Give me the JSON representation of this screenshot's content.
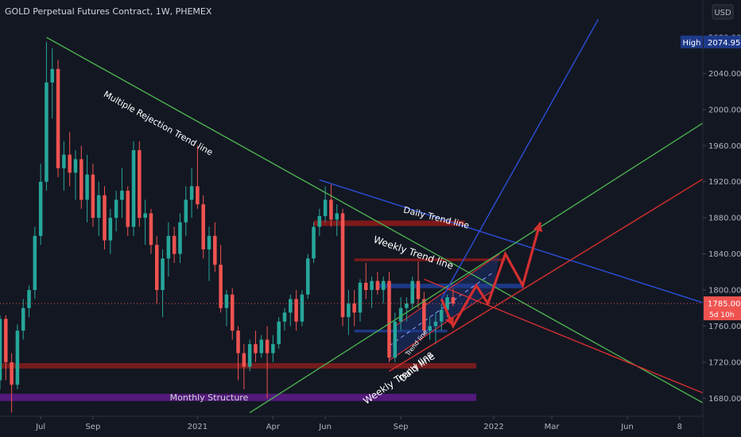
{
  "header": {
    "title": "GOLD Perpetual Futures Contract, 1W, PHEMEX",
    "currency_button": "USD"
  },
  "chart_data": {
    "type": "candlestick",
    "title": "GOLD Perpetual Futures Contract, 1W, PHEMEX",
    "y_axis": {
      "ticks": [
        1680,
        1720,
        1760,
        1800,
        1840,
        1880,
        1920,
        1960,
        2000,
        2040,
        2080
      ],
      "tick_labels": [
        "1680.00",
        "1720.00",
        "1760.00",
        "1800.00",
        "1840.00",
        "1880.00",
        "1920.00",
        "1960.00",
        "2000.00",
        "2040.00",
        "2080.00"
      ],
      "range": [
        1660,
        2095
      ]
    },
    "x_axis": {
      "tick_labels": [
        "Jul",
        "Sep",
        "2021",
        "Apr",
        "Jun",
        "Sep",
        "2022",
        "Mar",
        "Jun",
        "8"
      ],
      "tick_positions": [
        2,
        11,
        29,
        42,
        51,
        64,
        80,
        90,
        103,
        112
      ],
      "range": [
        -5,
        116
      ]
    },
    "badges": {
      "high_label": "High",
      "high_value": "2074.95",
      "high_price": 2074.95,
      "last_price": 1785.0,
      "last_label": "1785.00",
      "countdown": "5d 10h"
    },
    "up_color": "#26a69a",
    "down_color": "#ef5350",
    "candles": [
      {
        "i": -5,
        "o": 1700,
        "h": 1772,
        "l": 1690,
        "c": 1768
      },
      {
        "i": -4,
        "o": 1768,
        "h": 1772,
        "l": 1700,
        "c": 1720
      },
      {
        "i": -3,
        "o": 1720,
        "h": 1730,
        "l": 1664,
        "c": 1695
      },
      {
        "i": -2,
        "o": 1695,
        "h": 1762,
        "l": 1690,
        "c": 1755
      },
      {
        "i": -1,
        "o": 1755,
        "h": 1790,
        "l": 1745,
        "c": 1780
      },
      {
        "i": 0,
        "o": 1780,
        "h": 1805,
        "l": 1770,
        "c": 1800
      },
      {
        "i": 1,
        "o": 1800,
        "h": 1870,
        "l": 1790,
        "c": 1860
      },
      {
        "i": 2,
        "o": 1860,
        "h": 1940,
        "l": 1850,
        "c": 1920
      },
      {
        "i": 3,
        "o": 1920,
        "h": 2075,
        "l": 1910,
        "c": 2030
      },
      {
        "i": 4,
        "o": 2030,
        "h": 2068,
        "l": 1990,
        "c": 2045
      },
      {
        "i": 5,
        "o": 2045,
        "h": 2055,
        "l": 1925,
        "c": 1935
      },
      {
        "i": 6,
        "o": 1935,
        "h": 1965,
        "l": 1910,
        "c": 1950
      },
      {
        "i": 7,
        "o": 1950,
        "h": 1975,
        "l": 1915,
        "c": 1930
      },
      {
        "i": 8,
        "o": 1930,
        "h": 1955,
        "l": 1900,
        "c": 1945
      },
      {
        "i": 9,
        "o": 1945,
        "h": 1960,
        "l": 1890,
        "c": 1900
      },
      {
        "i": 10,
        "o": 1900,
        "h": 1950,
        "l": 1875,
        "c": 1928
      },
      {
        "i": 11,
        "o": 1928,
        "h": 1940,
        "l": 1870,
        "c": 1880
      },
      {
        "i": 12,
        "o": 1880,
        "h": 1920,
        "l": 1860,
        "c": 1905
      },
      {
        "i": 13,
        "o": 1905,
        "h": 1915,
        "l": 1845,
        "c": 1855
      },
      {
        "i": 14,
        "o": 1855,
        "h": 1890,
        "l": 1840,
        "c": 1880
      },
      {
        "i": 15,
        "o": 1880,
        "h": 1910,
        "l": 1865,
        "c": 1900
      },
      {
        "i": 16,
        "o": 1900,
        "h": 1935,
        "l": 1880,
        "c": 1910
      },
      {
        "i": 17,
        "o": 1910,
        "h": 1915,
        "l": 1860,
        "c": 1870
      },
      {
        "i": 18,
        "o": 1870,
        "h": 1965,
        "l": 1860,
        "c": 1955
      },
      {
        "i": 19,
        "o": 1955,
        "h": 1965,
        "l": 1870,
        "c": 1880
      },
      {
        "i": 20,
        "o": 1880,
        "h": 1900,
        "l": 1850,
        "c": 1885
      },
      {
        "i": 21,
        "o": 1885,
        "h": 1890,
        "l": 1840,
        "c": 1850
      },
      {
        "i": 22,
        "o": 1850,
        "h": 1860,
        "l": 1785,
        "c": 1800
      },
      {
        "i": 23,
        "o": 1800,
        "h": 1845,
        "l": 1770,
        "c": 1835
      },
      {
        "i": 24,
        "o": 1835,
        "h": 1875,
        "l": 1815,
        "c": 1860
      },
      {
        "i": 25,
        "o": 1860,
        "h": 1870,
        "l": 1830,
        "c": 1840
      },
      {
        "i": 26,
        "o": 1840,
        "h": 1885,
        "l": 1830,
        "c": 1875
      },
      {
        "i": 27,
        "o": 1875,
        "h": 1915,
        "l": 1860,
        "c": 1900
      },
      {
        "i": 28,
        "o": 1900,
        "h": 1935,
        "l": 1880,
        "c": 1915
      },
      {
        "i": 29,
        "o": 1915,
        "h": 1960,
        "l": 1890,
        "c": 1895
      },
      {
        "i": 30,
        "o": 1895,
        "h": 1905,
        "l": 1835,
        "c": 1845
      },
      {
        "i": 31,
        "o": 1845,
        "h": 1870,
        "l": 1810,
        "c": 1860
      },
      {
        "i": 32,
        "o": 1860,
        "h": 1875,
        "l": 1820,
        "c": 1828
      },
      {
        "i": 33,
        "o": 1828,
        "h": 1850,
        "l": 1775,
        "c": 1780
      },
      {
        "i": 34,
        "o": 1780,
        "h": 1800,
        "l": 1760,
        "c": 1795
      },
      {
        "i": 35,
        "o": 1795,
        "h": 1802,
        "l": 1745,
        "c": 1755
      },
      {
        "i": 36,
        "o": 1755,
        "h": 1760,
        "l": 1700,
        "c": 1730
      },
      {
        "i": 37,
        "o": 1730,
        "h": 1740,
        "l": 1690,
        "c": 1715
      },
      {
        "i": 38,
        "o": 1715,
        "h": 1745,
        "l": 1710,
        "c": 1740
      },
      {
        "i": 39,
        "o": 1740,
        "h": 1755,
        "l": 1720,
        "c": 1730
      },
      {
        "i": 40,
        "o": 1730,
        "h": 1750,
        "l": 1725,
        "c": 1745
      },
      {
        "i": 41,
        "o": 1745,
        "h": 1760,
        "l": 1680,
        "c": 1730
      },
      {
        "i": 42,
        "o": 1730,
        "h": 1750,
        "l": 1720,
        "c": 1740
      },
      {
        "i": 43,
        "o": 1740,
        "h": 1770,
        "l": 1735,
        "c": 1765
      },
      {
        "i": 44,
        "o": 1765,
        "h": 1780,
        "l": 1755,
        "c": 1775
      },
      {
        "i": 45,
        "o": 1775,
        "h": 1795,
        "l": 1760,
        "c": 1790
      },
      {
        "i": 46,
        "o": 1790,
        "h": 1800,
        "l": 1755,
        "c": 1765
      },
      {
        "i": 47,
        "o": 1765,
        "h": 1800,
        "l": 1760,
        "c": 1795
      },
      {
        "i": 48,
        "o": 1795,
        "h": 1840,
        "l": 1790,
        "c": 1835
      },
      {
        "i": 49,
        "o": 1835,
        "h": 1875,
        "l": 1830,
        "c": 1870
      },
      {
        "i": 50,
        "o": 1870,
        "h": 1890,
        "l": 1860,
        "c": 1882
      },
      {
        "i": 51,
        "o": 1882,
        "h": 1915,
        "l": 1875,
        "c": 1900
      },
      {
        "i": 52,
        "o": 1900,
        "h": 1918,
        "l": 1870,
        "c": 1878
      },
      {
        "i": 53,
        "o": 1878,
        "h": 1895,
        "l": 1860,
        "c": 1885
      },
      {
        "i": 54,
        "o": 1885,
        "h": 1890,
        "l": 1760,
        "c": 1770
      },
      {
        "i": 55,
        "o": 1770,
        "h": 1800,
        "l": 1750,
        "c": 1785
      },
      {
        "i": 56,
        "o": 1785,
        "h": 1800,
        "l": 1760,
        "c": 1775
      },
      {
        "i": 57,
        "o": 1775,
        "h": 1812,
        "l": 1765,
        "c": 1808
      },
      {
        "i": 58,
        "o": 1808,
        "h": 1830,
        "l": 1790,
        "c": 1800
      },
      {
        "i": 59,
        "o": 1800,
        "h": 1815,
        "l": 1780,
        "c": 1810
      },
      {
        "i": 60,
        "o": 1810,
        "h": 1820,
        "l": 1795,
        "c": 1800
      },
      {
        "i": 61,
        "o": 1800,
        "h": 1815,
        "l": 1785,
        "c": 1810
      },
      {
        "i": 62,
        "o": 1810,
        "h": 1820,
        "l": 1720,
        "c": 1725
      },
      {
        "i": 63,
        "o": 1725,
        "h": 1775,
        "l": 1720,
        "c": 1765
      },
      {
        "i": 64,
        "o": 1765,
        "h": 1792,
        "l": 1755,
        "c": 1780
      },
      {
        "i": 65,
        "o": 1780,
        "h": 1792,
        "l": 1765,
        "c": 1785
      },
      {
        "i": 66,
        "o": 1785,
        "h": 1815,
        "l": 1780,
        "c": 1810
      },
      {
        "i": 67,
        "o": 1810,
        "h": 1832,
        "l": 1780,
        "c": 1790
      },
      {
        "i": 68,
        "o": 1790,
        "h": 1798,
        "l": 1750,
        "c": 1755
      },
      {
        "i": 69,
        "o": 1755,
        "h": 1770,
        "l": 1745,
        "c": 1760
      },
      {
        "i": 70,
        "o": 1760,
        "h": 1775,
        "l": 1740,
        "c": 1765
      },
      {
        "i": 71,
        "o": 1765,
        "h": 1785,
        "l": 1755,
        "c": 1778
      },
      {
        "i": 72,
        "o": 1778,
        "h": 1795,
        "l": 1770,
        "c": 1792
      },
      {
        "i": 73,
        "o": 1792,
        "h": 1802,
        "l": 1782,
        "c": 1785
      }
    ],
    "zones": [
      {
        "name": "monthly-structure-zone",
        "color": "#6a1b9a",
        "opacity": 0.75,
        "x0": -5,
        "x1": 77,
        "y0": 1677,
        "y1": 1685,
        "label": "Monthly Structure"
      },
      {
        "name": "support-zone-1720",
        "color": "#7f1d1d",
        "opacity": 0.9,
        "x0": -5,
        "x1": 77,
        "y0": 1713,
        "y1": 1719,
        "label": ""
      },
      {
        "name": "resistance-zone-1875",
        "color": "#8b1a1a",
        "opacity": 0.9,
        "x0": 49,
        "x1": 75,
        "y0": 1871,
        "y1": 1877,
        "label": ""
      },
      {
        "name": "resistance-zone-1835",
        "color": "#8b1a1a",
        "opacity": 0.9,
        "x0": 56,
        "x1": 82,
        "y0": 1832,
        "y1": 1835,
        "label": ""
      },
      {
        "name": "blue-zone-1805",
        "color": "#1e3a8a",
        "opacity": 0.95,
        "x0": 60,
        "x1": 85,
        "y0": 1802,
        "y1": 1807,
        "label": ""
      },
      {
        "name": "blue-zone-1755",
        "color": "#1e3a8a",
        "opacity": 0.95,
        "x0": 56,
        "x1": 72,
        "y0": 1753,
        "y1": 1756,
        "label": ""
      }
    ],
    "trend_lines": [
      {
        "name": "multiple-rejection-trend-line",
        "color": "#4caf50",
        "width": 1.4,
        "x0": 3,
        "y0": 2080,
        "x1": 116,
        "y1": 1675
      },
      {
        "name": "daily-trend-line",
        "color": "#2b4fd8",
        "width": 1.4,
        "x0": 50,
        "y0": 1922,
        "x1": 116,
        "y1": 1786
      },
      {
        "name": "weekly-trend-line",
        "color": "#d32f2f",
        "width": 1.4,
        "x0": 68,
        "y0": 1812,
        "x1": 116,
        "y1": 1686
      },
      {
        "name": "green-rising-line",
        "color": "#4caf50",
        "width": 1.4,
        "x0": 38,
        "y0": 1664,
        "x1": 116,
        "y1": 1985
      },
      {
        "name": "red-rising-line",
        "color": "#d32f2f",
        "width": 1.4,
        "x0": 62,
        "y0": 1710,
        "x1": 116,
        "y1": 1923
      },
      {
        "name": "blue-rising-line",
        "color": "#2b4fd8",
        "width": 1.4,
        "x0": 71,
        "y0": 1790,
        "x1": 98,
        "y1": 2100
      }
    ],
    "channel": {
      "name": "weekly-daily-channel",
      "fill": "#1e3a8a",
      "fill_opacity": 0.4,
      "edge_color": "#d32f2f",
      "points": [
        [
          62,
          1722
        ],
        [
          80,
          1800
        ],
        [
          81,
          1840
        ],
        [
          63,
          1760
        ]
      ],
      "mid_dash": [
        [
          62,
          1738
        ],
        [
          80,
          1820
        ]
      ]
    },
    "projection": {
      "name": "projected-path-arrow",
      "color": "#d32f2f",
      "points": [
        [
          71,
          1790
        ],
        [
          73,
          1760
        ],
        [
          77,
          1805
        ],
        [
          79,
          1785
        ],
        [
          82,
          1840
        ],
        [
          85,
          1805
        ],
        [
          88,
          1875
        ]
      ]
    },
    "annotations": [
      {
        "name": "annotation-multiple-rejection",
        "text": "Multiple Rejection Trend line",
        "x": 22,
        "y": 1982,
        "angle": 29,
        "size": 11
      },
      {
        "name": "annotation-daily-trend",
        "text": "Daily Trend line",
        "x": 70,
        "y": 1877,
        "angle": 14,
        "size": 11
      },
      {
        "name": "annotation-weekly-trend",
        "text": "Weekly Trend line",
        "x": 66,
        "y": 1838,
        "angle": 19,
        "size": 12
      },
      {
        "name": "annotation-weekly-trend-lower",
        "text": "Weekly Trend line",
        "x": 64,
        "y": 1699,
        "angle": -34,
        "size": 12
      },
      {
        "name": "annotation-daily-line-lower",
        "text": "Daily line",
        "x": 67,
        "y": 1713,
        "angle": -42,
        "size": 11
      },
      {
        "name": "annotation-trend-line-inner",
        "text": "Trend line",
        "x": 67,
        "y": 1740,
        "angle": -52,
        "size": 8
      }
    ]
  }
}
